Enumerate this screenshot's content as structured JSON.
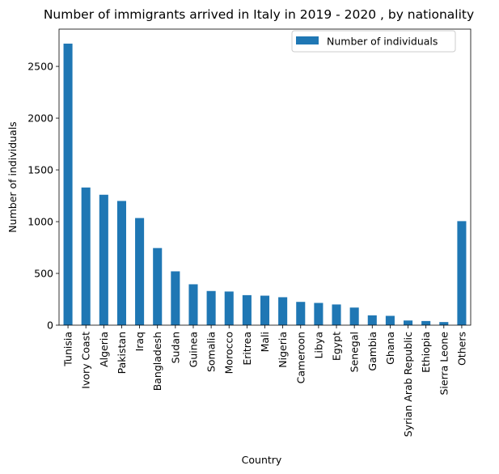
{
  "chart_data": {
    "type": "bar",
    "title": "Number of immigrants arrived in Italy in 2019 - 2020 , by nationality",
    "xlabel": "Country",
    "ylabel": "Number of individuals",
    "categories": [
      "Tunisia",
      "Ivory Coast",
      "Algeria",
      "Pakistan",
      "Iraq",
      "Bangladesh",
      "Sudan",
      "Guinea",
      "Somalia",
      "Morocco",
      "Eritrea",
      "Mali",
      "Nigeria",
      "Cameroon",
      "Libya",
      "Egypt",
      "Senegal",
      "Gambia",
      "Ghana",
      "Syrian Arab Republic",
      "Ethiopia",
      "Sierra Leone",
      "Others"
    ],
    "series": [
      {
        "name": "Number of individuals",
        "color": "#1f77b4",
        "values": [
          2720,
          1330,
          1260,
          1200,
          1035,
          745,
          520,
          395,
          330,
          325,
          290,
          285,
          270,
          225,
          215,
          200,
          170,
          95,
          90,
          45,
          40,
          30,
          1005
        ]
      }
    ],
    "ylim": [
      0,
      2860
    ],
    "yticks": [
      0,
      500,
      1000,
      1500,
      2000,
      2500
    ],
    "legend_position": "top-right",
    "grid": false
  }
}
